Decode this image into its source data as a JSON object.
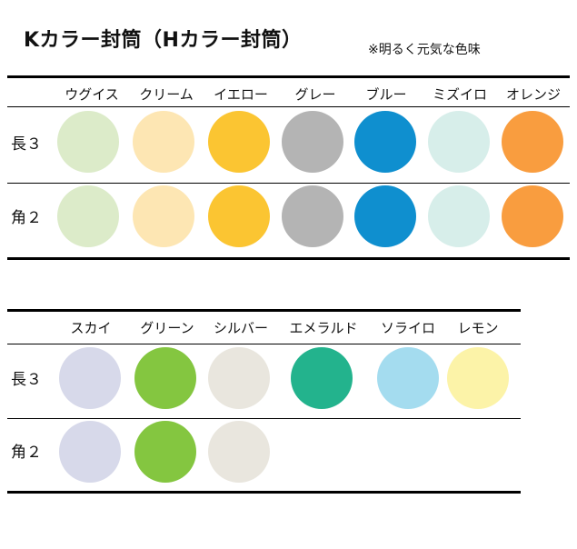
{
  "title": "Kカラー封筒（Hカラー封筒）",
  "note": "※明るく元気な色味",
  "table1": {
    "columns": [
      {
        "name": "ウグイス",
        "color": "#dcebc9"
      },
      {
        "name": "クリーム",
        "color": "#fde6b3"
      },
      {
        "name": "イエロー",
        "color": "#fbc532"
      },
      {
        "name": "グレー",
        "color": "#b4b4b4"
      },
      {
        "name": "ブルー",
        "color": "#0f8fcf"
      },
      {
        "name": "ミズイロ",
        "color": "#d7eeea"
      },
      {
        "name": "オレンジ",
        "color": "#f99d3f"
      }
    ],
    "rows": [
      {
        "label": "長３"
      },
      {
        "label": "角２"
      }
    ]
  },
  "table2": {
    "columns": [
      {
        "name": "スカイ",
        "color": "#d7d9ea"
      },
      {
        "name": "グリーン",
        "color": "#84c640"
      },
      {
        "name": "シルバー",
        "color": "#e9e6de"
      },
      {
        "name": "エメラルド",
        "color": "#23b38d"
      },
      {
        "name": "ソライロ",
        "color": "#a4dcef"
      },
      {
        "name": "レモン",
        "color": "#fcf3a8"
      }
    ],
    "rows": [
      {
        "label": "長３",
        "available": [
          true,
          true,
          true,
          true,
          true,
          true
        ]
      },
      {
        "label": "角２",
        "available": [
          true,
          true,
          true,
          false,
          false,
          false
        ]
      }
    ]
  }
}
